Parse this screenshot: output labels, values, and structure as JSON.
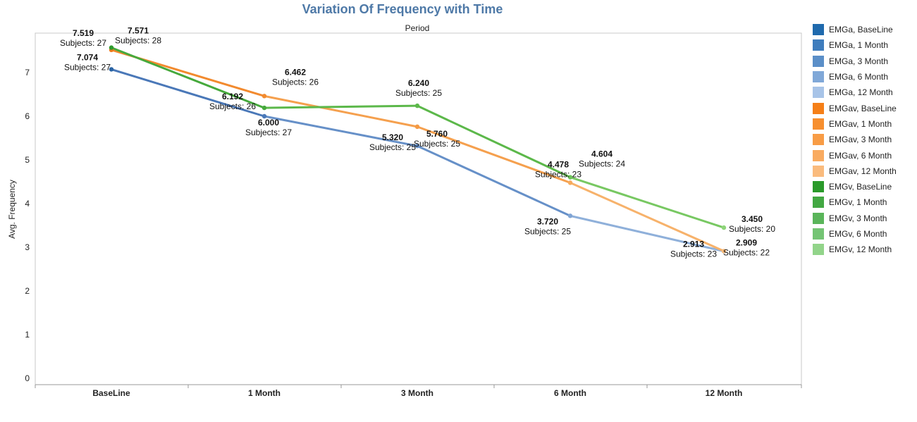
{
  "chart_data": {
    "type": "line",
    "title": "Variation Of Frequency with Time",
    "header": "Period",
    "xlabel": "",
    "ylabel": "Avg. Frequency",
    "categories": [
      "BaseLine",
      "1 Month",
      "3 Month",
      "6 Month",
      "12 Month"
    ],
    "ylim": [
      0,
      7.7
    ],
    "yticks": [
      0,
      1,
      2,
      3,
      4,
      5,
      6,
      7
    ],
    "grid": false,
    "legend_position": "right",
    "series": [
      {
        "name": "EMGa",
        "color": "#5b86c2",
        "segment_colors": [
          "#4a78b8",
          "#6690c8",
          "#8fb0da"
        ],
        "point_colors": [
          "#2a64a4",
          "#4a78b8",
          "#6690c8",
          "#7fa4d4",
          "#aac2e6"
        ],
        "values": [
          7.074,
          6.0,
          5.32,
          3.72,
          2.909
        ],
        "labels": [
          {
            "value": "7.074",
            "subjects": "Subjects: 27"
          },
          {
            "value": "6.000",
            "subjects": "Subjects: 27"
          },
          {
            "value": "5.320",
            "subjects": "Subjects: 25"
          },
          {
            "value": "3.720",
            "subjects": "Subjects: 25"
          },
          {
            "value": "2.909",
            "subjects": "Subjects: 22"
          }
        ]
      },
      {
        "name": "EMGav",
        "color": "#f5a04e",
        "segment_colors": [
          "#f28a2e",
          "#f5a04e",
          "#f7b26b"
        ],
        "point_colors": [
          "#ee7a1c",
          "#f28a2e",
          "#f49a44",
          "#f6aa5c",
          "#f8bb7a"
        ],
        "values": [
          7.519,
          6.462,
          5.76,
          4.478,
          2.913
        ],
        "labels": [
          {
            "value": "7.519",
            "subjects": "Subjects: 27"
          },
          {
            "value": "6.462",
            "subjects": "Subjects: 26"
          },
          {
            "value": "5.760",
            "subjects": "Subjects: 25"
          },
          {
            "value": "4.478",
            "subjects": "Subjects: 23"
          },
          {
            "value": "2.913",
            "subjects": "Subjects: 23"
          }
        ]
      },
      {
        "name": "EMGv",
        "color": "#5cb84a",
        "segment_colors": [
          "#46a93c",
          "#5cb84a",
          "#78c862"
        ],
        "point_colors": [
          "#2e9a2e",
          "#46a93c",
          "#5cb84a",
          "#6ec25a",
          "#8ed47a"
        ],
        "values": [
          7.571,
          6.192,
          6.24,
          4.604,
          3.45
        ],
        "labels": [
          {
            "value": "7.571",
            "subjects": "Subjects: 28"
          },
          {
            "value": "6.192",
            "subjects": "Subjects: 26"
          },
          {
            "value": "6.240",
            "subjects": "Subjects: 25"
          },
          {
            "value": "4.604",
            "subjects": "Subjects: 24"
          },
          {
            "value": "3.450",
            "subjects": "Subjects: 20"
          }
        ]
      }
    ]
  },
  "legend": [
    {
      "label": "EMGa, BaseLine",
      "color": "#1f6aad"
    },
    {
      "label": "EMGa, 1 Month",
      "color": "#3f7dbd"
    },
    {
      "label": "EMGa, 3 Month",
      "color": "#5b8fc8"
    },
    {
      "label": "EMGa, 6 Month",
      "color": "#80a8d8"
    },
    {
      "label": "EMGa, 12 Month",
      "color": "#a8c4e8"
    },
    {
      "label": "EMGav, BaseLine",
      "color": "#f57f17"
    },
    {
      "label": "EMGav, 1 Month",
      "color": "#f78f2f"
    },
    {
      "label": "EMGav, 3 Month",
      "color": "#f89c45"
    },
    {
      "label": "EMGav, 6 Month",
      "color": "#f9ab60"
    },
    {
      "label": "EMGav, 12 Month",
      "color": "#fabb7d"
    },
    {
      "label": "EMGv, BaseLine",
      "color": "#2a9a2a"
    },
    {
      "label": "EMGv, 1 Month",
      "color": "#42a842"
    },
    {
      "label": "EMGv, 3 Month",
      "color": "#5ab55a"
    },
    {
      "label": "EMGv, 6 Month",
      "color": "#74c474"
    },
    {
      "label": "EMGv, 12 Month",
      "color": "#92d48a"
    }
  ],
  "colors": {
    "title": "#4e79a7",
    "axis": "#999999"
  }
}
